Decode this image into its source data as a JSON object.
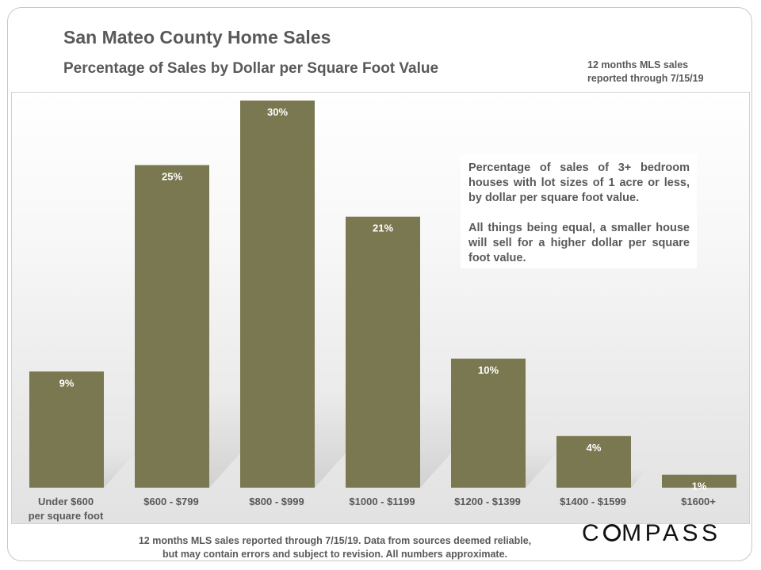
{
  "header": {
    "title": "San Mateo County Home Sales",
    "subtitle": "Percentage of Sales by Dollar per Square Foot Value",
    "note_line1": "12 months MLS sales",
    "note_line2": "reported through 7/15/19"
  },
  "annotation": {
    "paragraph1": "Percentage of sales of 3+ bedroom houses with lot sizes of 1 acre or less, by dollar per square foot value.",
    "paragraph2": "All things being equal, a smaller house will sell for a higher dollar per square foot value."
  },
  "footer": {
    "line1": "12 months MLS sales reported through 7/15/19. Data from sources deemed reliable,",
    "line2": "but may contain errors and subject to revision. All numbers approximate."
  },
  "logo": {
    "text_before": "C",
    "text_after": "MPASS"
  },
  "colors": {
    "bar": "#7a7850",
    "text": "#595959",
    "label_text": "#ffffff"
  },
  "chart_data": {
    "type": "bar",
    "categories": [
      [
        "Under $600",
        "per square foot"
      ],
      [
        "$600 - $799"
      ],
      [
        "$800 - $999"
      ],
      [
        "$1000 - $1199"
      ],
      [
        "$1200 - $1399"
      ],
      [
        "$1400 - $1599"
      ],
      [
        "$1600+"
      ]
    ],
    "values": [
      9,
      25,
      30,
      21,
      10,
      4,
      1
    ],
    "data_labels": [
      "9%",
      "25%",
      "30%",
      "21%",
      "10%",
      "4%",
      "1%"
    ],
    "title": "Percentage of Sales by Dollar per Square Foot Value",
    "xlabel": "",
    "ylabel": "",
    "ylim": [
      0,
      30
    ],
    "grid": false,
    "legend": "none"
  }
}
